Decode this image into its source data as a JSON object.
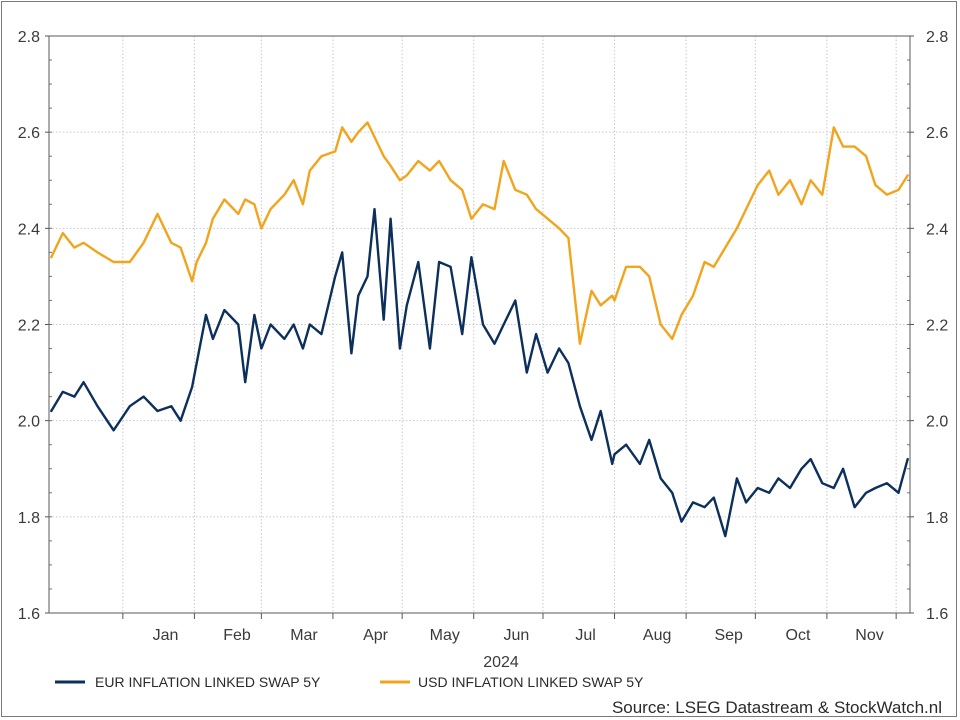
{
  "chart_data": {
    "type": "line",
    "xlabel": "2024",
    "ylim": [
      1.6,
      2.8
    ],
    "yticks": [
      1.6,
      1.8,
      2.0,
      2.2,
      2.4,
      2.6,
      2.8
    ],
    "ytick_labels": [
      "1.6",
      "1.8",
      "2.0",
      "2.2",
      "2.4",
      "2.6",
      "2.8"
    ],
    "month_labels": [
      "Jan",
      "Feb",
      "Mar",
      "Apr",
      "May",
      "Jun",
      "Jul",
      "Aug",
      "Sep",
      "Oct",
      "Nov"
    ],
    "grid": true,
    "legend_position": "bottom",
    "source": "Source: LSEG Datastream & StockWatch.nl",
    "series": [
      {
        "name": "EUR INFLATION LINKED SWAP 5Y",
        "color": "#0c2f5b",
        "x": [
          "2023-12-01",
          "2023-12-06",
          "2023-12-11",
          "2023-12-15",
          "2023-12-21",
          "2023-12-28",
          "2024-01-04",
          "2024-01-10",
          "2024-01-16",
          "2024-01-22",
          "2024-01-26",
          "2024-01-31",
          "2024-02-02",
          "2024-02-06",
          "2024-02-09",
          "2024-02-14",
          "2024-02-20",
          "2024-02-23",
          "2024-02-27",
          "2024-03-01",
          "2024-03-05",
          "2024-03-11",
          "2024-03-15",
          "2024-03-19",
          "2024-03-22",
          "2024-03-27",
          "2024-04-02",
          "2024-04-05",
          "2024-04-09",
          "2024-04-12",
          "2024-04-16",
          "2024-04-19",
          "2024-04-23",
          "2024-04-26",
          "2024-04-30",
          "2024-05-03",
          "2024-05-08",
          "2024-05-13",
          "2024-05-17",
          "2024-05-22",
          "2024-05-27",
          "2024-05-31",
          "2024-06-05",
          "2024-06-10",
          "2024-06-14",
          "2024-06-19",
          "2024-06-24",
          "2024-06-28",
          "2024-07-03",
          "2024-07-08",
          "2024-07-12",
          "2024-07-17",
          "2024-07-22",
          "2024-07-26",
          "2024-07-31",
          "2024-08-01",
          "2024-08-06",
          "2024-08-12",
          "2024-08-16",
          "2024-08-21",
          "2024-08-26",
          "2024-08-30",
          "2024-09-04",
          "2024-09-09",
          "2024-09-13",
          "2024-09-18",
          "2024-09-23",
          "2024-09-27",
          "2024-10-02",
          "2024-10-07",
          "2024-10-11",
          "2024-10-16",
          "2024-10-21",
          "2024-10-25",
          "2024-10-30",
          "2024-11-04",
          "2024-11-08",
          "2024-11-13",
          "2024-11-18",
          "2024-11-22",
          "2024-11-27",
          "2024-12-02",
          "2024-12-06"
        ],
        "y": [
          2.02,
          2.06,
          2.05,
          2.08,
          2.03,
          1.98,
          2.03,
          2.05,
          2.02,
          2.03,
          2.0,
          2.07,
          2.12,
          2.22,
          2.17,
          2.23,
          2.2,
          2.08,
          2.22,
          2.15,
          2.2,
          2.17,
          2.2,
          2.15,
          2.2,
          2.18,
          2.3,
          2.35,
          2.14,
          2.26,
          2.3,
          2.44,
          2.21,
          2.42,
          2.15,
          2.24,
          2.33,
          2.15,
          2.33,
          2.32,
          2.18,
          2.34,
          2.2,
          2.16,
          2.2,
          2.25,
          2.1,
          2.18,
          2.1,
          2.15,
          2.12,
          2.03,
          1.96,
          2.02,
          1.91,
          1.93,
          1.95,
          1.91,
          1.96,
          1.88,
          1.85,
          1.79,
          1.83,
          1.82,
          1.84,
          1.76,
          1.88,
          1.83,
          1.86,
          1.85,
          1.88,
          1.86,
          1.9,
          1.92,
          1.87,
          1.86,
          1.9,
          1.82,
          1.85,
          1.86,
          1.87,
          1.85,
          1.92
        ]
      },
      {
        "name": "USD INFLATION LINKED SWAP 5Y",
        "color": "#f2a41c",
        "x": [
          "2023-12-01",
          "2023-12-06",
          "2023-12-11",
          "2023-12-15",
          "2023-12-21",
          "2023-12-28",
          "2024-01-04",
          "2024-01-10",
          "2024-01-16",
          "2024-01-22",
          "2024-01-26",
          "2024-01-31",
          "2024-02-02",
          "2024-02-06",
          "2024-02-09",
          "2024-02-14",
          "2024-02-20",
          "2024-02-23",
          "2024-02-27",
          "2024-03-01",
          "2024-03-05",
          "2024-03-11",
          "2024-03-15",
          "2024-03-19",
          "2024-03-22",
          "2024-03-27",
          "2024-04-02",
          "2024-04-05",
          "2024-04-09",
          "2024-04-12",
          "2024-04-16",
          "2024-04-19",
          "2024-04-23",
          "2024-04-26",
          "2024-04-30",
          "2024-05-03",
          "2024-05-08",
          "2024-05-13",
          "2024-05-17",
          "2024-05-22",
          "2024-05-27",
          "2024-05-31",
          "2024-06-05",
          "2024-06-10",
          "2024-06-14",
          "2024-06-19",
          "2024-06-24",
          "2024-06-28",
          "2024-07-03",
          "2024-07-08",
          "2024-07-12",
          "2024-07-17",
          "2024-07-22",
          "2024-07-26",
          "2024-07-31",
          "2024-08-01",
          "2024-08-06",
          "2024-08-12",
          "2024-08-16",
          "2024-08-21",
          "2024-08-26",
          "2024-08-30",
          "2024-09-04",
          "2024-09-09",
          "2024-09-13",
          "2024-09-18",
          "2024-09-23",
          "2024-09-27",
          "2024-10-02",
          "2024-10-07",
          "2024-10-11",
          "2024-10-16",
          "2024-10-21",
          "2024-10-25",
          "2024-10-30",
          "2024-11-04",
          "2024-11-08",
          "2024-11-13",
          "2024-11-18",
          "2024-11-22",
          "2024-11-27",
          "2024-12-02",
          "2024-12-06"
        ],
        "y": [
          2.34,
          2.39,
          2.36,
          2.37,
          2.35,
          2.33,
          2.33,
          2.37,
          2.43,
          2.37,
          2.36,
          2.29,
          2.33,
          2.37,
          2.42,
          2.46,
          2.43,
          2.46,
          2.45,
          2.4,
          2.44,
          2.47,
          2.5,
          2.45,
          2.52,
          2.55,
          2.56,
          2.61,
          2.58,
          2.6,
          2.62,
          2.59,
          2.55,
          2.53,
          2.5,
          2.51,
          2.54,
          2.52,
          2.54,
          2.5,
          2.48,
          2.42,
          2.45,
          2.44,
          2.54,
          2.48,
          2.47,
          2.44,
          2.42,
          2.4,
          2.38,
          2.16,
          2.27,
          2.24,
          2.26,
          2.25,
          2.32,
          2.32,
          2.3,
          2.2,
          2.17,
          2.22,
          2.26,
          2.33,
          2.32,
          2.36,
          2.4,
          2.44,
          2.49,
          2.52,
          2.47,
          2.5,
          2.45,
          2.5,
          2.47,
          2.61,
          2.57,
          2.57,
          2.55,
          2.49,
          2.47,
          2.48,
          2.51
        ]
      }
    ]
  }
}
